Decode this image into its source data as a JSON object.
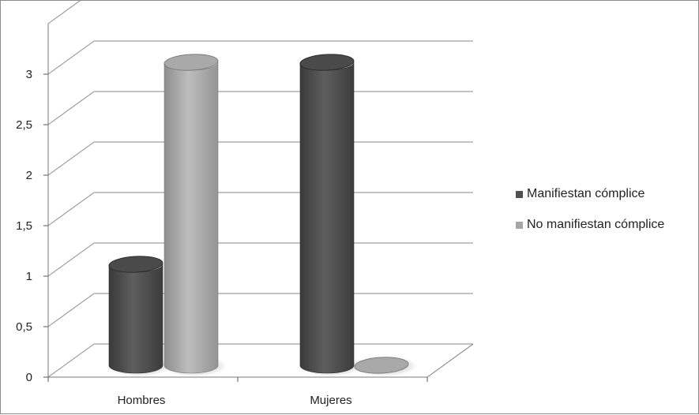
{
  "chart_data": {
    "type": "bar",
    "style": "3d-cylinder",
    "title": "",
    "xlabel": "",
    "ylabel": "",
    "categories": [
      "Hombres",
      "Mujeres"
    ],
    "series": [
      {
        "name": "Manifiestan cómplice",
        "values": [
          1,
          3
        ],
        "color": "#505050"
      },
      {
        "name": "No manifiestan cómplice",
        "values": [
          3,
          0
        ],
        "color": "#a6a6a6"
      }
    ],
    "ylim": [
      0,
      3
    ],
    "yticks": [
      "0",
      "0,5",
      "1",
      "1,5",
      "2",
      "2,5",
      "3"
    ],
    "grid": true,
    "legend_position": "right"
  }
}
